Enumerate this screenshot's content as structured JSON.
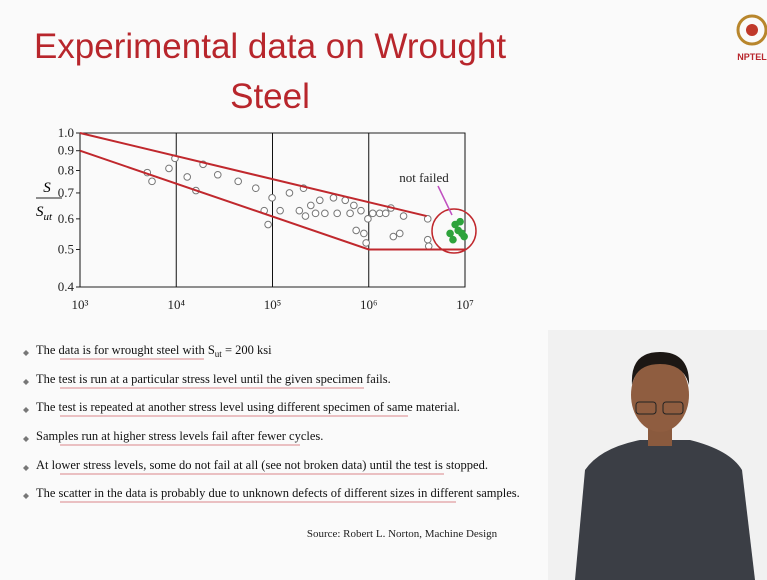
{
  "slide": {
    "title_lines": [
      "Experimental data on Wrought",
      "Steel"
    ],
    "logo_text": "NPTEL",
    "bullets": [
      {
        "text": "The data is for wrought steel with S",
        "sub": "ut",
        "after": " = 200 ksi"
      },
      {
        "text": "The test is run at a particular stress level until the given specimen fails."
      },
      {
        "text": "The test is repeated at another stress level using different specimen of same material."
      },
      {
        "text": "Samples run at higher stress levels fail after fewer cycles."
      },
      {
        "text": "At lower stress levels, some do not fail at all (see not broken data) until the test is stopped."
      },
      {
        "text": "The scatter in the data is probably due to unknown defects of different sizes in different samples."
      }
    ],
    "source": "Source: Robert L. Norton, Machine Design"
  },
  "chart_data": {
    "type": "scatter",
    "xscale": "log",
    "yscale": "log",
    "ylabel": {
      "numerator": "S",
      "denominator": "S",
      "denominator_subscript": "ut"
    },
    "annotation": "not failed",
    "xlim": [
      1000,
      10000000
    ],
    "ylim": [
      0.4,
      1
    ],
    "xticks": [
      {
        "value": 1000,
        "label": "10³"
      },
      {
        "value": 10000,
        "label": "10⁴"
      },
      {
        "value": 100000,
        "label": "10⁵"
      },
      {
        "value": 1000000,
        "label": "10⁶"
      },
      {
        "value": 10000000,
        "label": "10⁷"
      }
    ],
    "yticks": [
      0.4,
      0.5,
      0.6,
      0.7,
      0.8,
      0.9,
      {
        "value": 1,
        "label": "1.0"
      }
    ],
    "xgrid": true,
    "series": [
      {
        "mode": "markers",
        "color": "#ffffff",
        "edge": "#777777",
        "x": [
          5000,
          5600,
          8400,
          9700,
          13000,
          16000,
          19000,
          27000,
          44000,
          67000,
          82000,
          90000,
          99000,
          120000,
          150000,
          190000,
          210000,
          220000,
          250000,
          280000,
          310000,
          350000,
          430000,
          470000,
          570000,
          640000,
          700000,
          740000,
          830000,
          890000,
          940000,
          980000,
          1100000,
          1300000,
          1500000,
          1700000,
          1800000,
          2100000,
          2300000,
          4100000,
          4100000,
          4200000
        ],
        "values": [
          0.79,
          0.75,
          0.81,
          0.86,
          0.77,
          0.71,
          0.83,
          0.78,
          0.75,
          0.72,
          0.63,
          0.58,
          0.68,
          0.63,
          0.7,
          0.63,
          0.72,
          0.61,
          0.65,
          0.62,
          0.67,
          0.62,
          0.68,
          0.62,
          0.67,
          0.62,
          0.65,
          0.56,
          0.63,
          0.55,
          0.52,
          0.6,
          0.62,
          0.62,
          0.62,
          0.64,
          0.54,
          0.55,
          0.61,
          0.6,
          0.53,
          0.51
        ]
      },
      {
        "mode": "markers",
        "color": "#2ea33c",
        "edge": "#2ea33c",
        "x": [
          7900000,
          8900000,
          7000000,
          9300000,
          7500000,
          9800000,
          8500000
        ],
        "values": [
          0.58,
          0.59,
          0.55,
          0.55,
          0.53,
          0.54,
          0.56
        ]
      },
      {
        "mode": "lines",
        "color": "#c0282d",
        "x": [
          1000,
          4000000
        ],
        "values": [
          1,
          0.61
        ]
      },
      {
        "mode": "lines",
        "color": "#c0282d",
        "x": [
          1000,
          1000000,
          10000000
        ],
        "values": [
          0.9,
          0.5,
          0.5
        ]
      }
    ]
  }
}
